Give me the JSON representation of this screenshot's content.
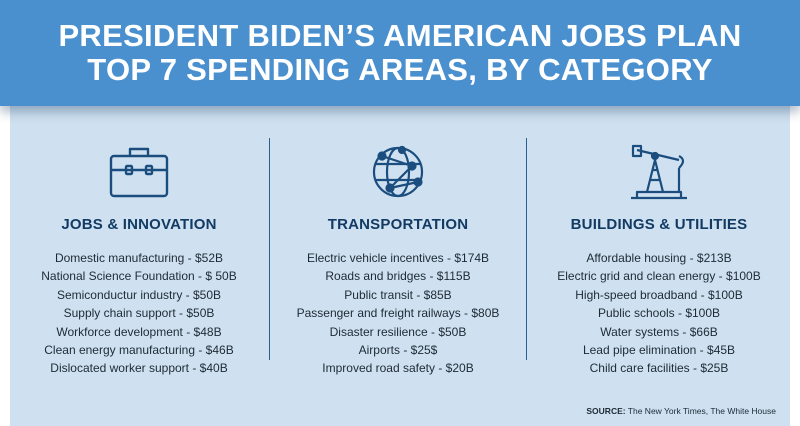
{
  "header": {
    "line1": "PRESIDENT BIDEN’S AMERICAN JOBS PLAN",
    "line2": "TOP 7 SPENDING AREAS, BY CATEGORY"
  },
  "colors": {
    "header_bg": "#4a90cf",
    "panel_bg": "#cfe1f0",
    "heading_text": "#123a63",
    "icon_stroke": "#1b4e7e"
  },
  "categories": [
    {
      "icon": "briefcase-icon",
      "title": "JOBS & INNOVATION",
      "items": [
        "Domestic manufacturing - $52B",
        "National Science Foundation - $ 50B",
        "Semiconductur industry - $50B",
        "Supply chain support - $50B",
        "Workforce development - $48B",
        "Clean energy manufacturing - $46B",
        "Dislocated worker support - $40B"
      ]
    },
    {
      "icon": "globe-network-icon",
      "title": "TRANSPORTATION",
      "items": [
        "Electric vehicle incentives - $174B",
        "Roads and bridges - $115B",
        "Public transit - $85B",
        "Passenger and freight railways - $80B",
        "Disaster resilience - $50B",
        "Airports - $25$",
        "Improved road safety - $20B"
      ]
    },
    {
      "icon": "oil-pump-icon",
      "title": "BUILDINGS & UTILITIES",
      "items": [
        "Affordable housing - $213B",
        "Electric grid and clean energy - $100B",
        "High-speed broadband - $100B",
        "Public schools - $100B",
        "Water systems - $66B",
        "Lead pipe elimination - $45B",
        "Child care facilities - $25B"
      ]
    }
  ],
  "source": {
    "label": "SOURCE:",
    "text": " The New York Times, The White House"
  }
}
